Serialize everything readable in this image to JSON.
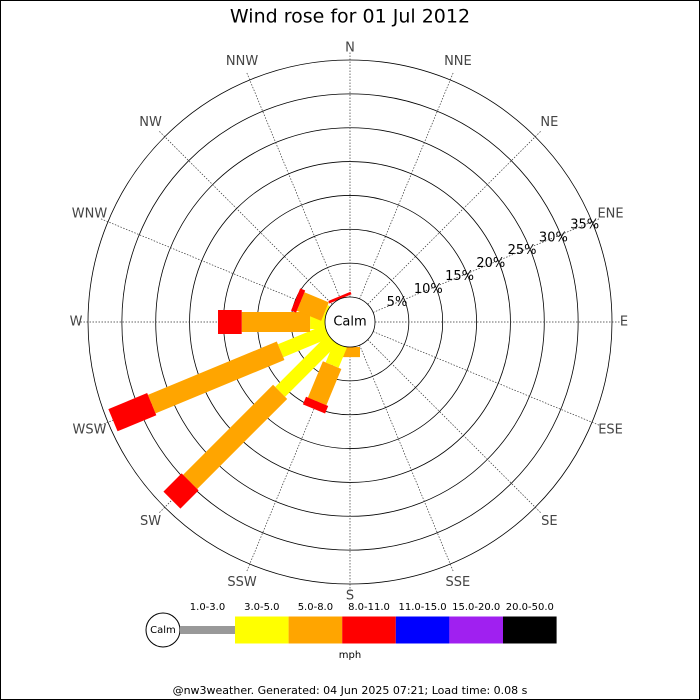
{
  "chart_data": {
    "type": "windrose",
    "title": "Wind rose for 01 Jul 2012",
    "directions": [
      "N",
      "NNE",
      "NE",
      "ENE",
      "E",
      "ESE",
      "SE",
      "SSE",
      "S",
      "SSW",
      "SW",
      "WSW",
      "W",
      "WNW",
      "NW",
      "NNW"
    ],
    "rlim": [
      0,
      35
    ],
    "rticks": [
      {
        "value": 5,
        "label": "5%"
      },
      {
        "value": 10,
        "label": "10%"
      },
      {
        "value": 15,
        "label": "15%"
      },
      {
        "value": 20,
        "label": "20%"
      },
      {
        "value": 25,
        "label": "25%"
      },
      {
        "value": 30,
        "label": "30%"
      },
      {
        "value": 35,
        "label": "35%"
      }
    ],
    "calm_label": "Calm",
    "unit": "mph",
    "series": [
      {
        "name": "1.0-3.0",
        "color": "#999999",
        "values": [
          0,
          0,
          0,
          0,
          0,
          0,
          0,
          0,
          0,
          0,
          0,
          0,
          0,
          0,
          0,
          0
        ]
      },
      {
        "name": "3.0-5.0",
        "color": "#ffff00",
        "values": [
          0,
          0,
          0,
          0,
          0,
          0,
          0,
          0,
          0,
          3.2,
          10.9,
          7.4,
          2.2,
          0.3,
          0,
          0
        ]
      },
      {
        "name": "5.0-8.0",
        "color": "#ffa500",
        "values": [
          0,
          0,
          0,
          0,
          0,
          0,
          0,
          0,
          1.5,
          5.8,
          18.8,
          20.6,
          10.1,
          3.9,
          0,
          0
        ]
      },
      {
        "name": "8.0-11.0",
        "color": "#ff0000",
        "values": [
          0,
          0,
          0,
          0,
          0,
          0,
          0,
          0,
          0,
          1.2,
          3.8,
          6.2,
          3.5,
          0.8,
          0,
          0.4
        ]
      },
      {
        "name": "11.0-15.0",
        "color": "#0000ff",
        "values": [
          0,
          0,
          0,
          0,
          0,
          0,
          0,
          0,
          0,
          0,
          0,
          0,
          0,
          0,
          0,
          0
        ]
      },
      {
        "name": "15.0-20.0",
        "color": "#a020f0",
        "values": [
          0,
          0,
          0,
          0,
          0,
          0,
          0,
          0,
          0,
          0,
          0,
          0,
          0,
          0,
          0,
          0
        ]
      },
      {
        "name": "20.0-50.0",
        "color": "#000000",
        "values": [
          0,
          0,
          0,
          0,
          0,
          0,
          0,
          0,
          0,
          0,
          0,
          0,
          0,
          0,
          0,
          0
        ]
      }
    ],
    "footer": "@nw3weather. Generated: 04 Jun 2025 07:21; Load time: 0.08 s"
  }
}
